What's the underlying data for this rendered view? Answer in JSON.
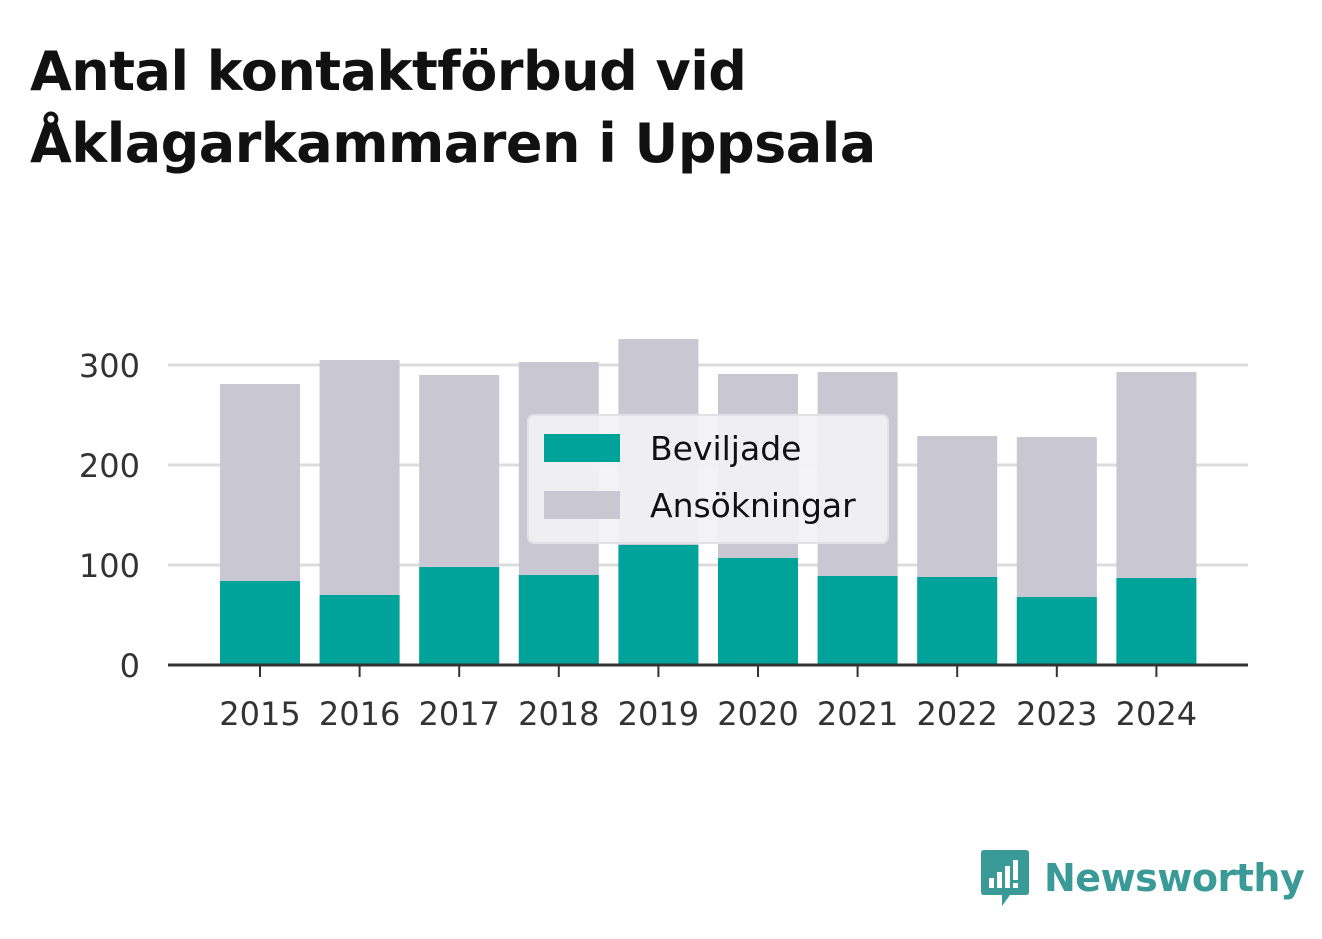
{
  "title_lines": [
    "Antal kontaktförbud vid",
    "Åklagarkammaren i Uppsala"
  ],
  "colors": {
    "beviljade": "#00a39a",
    "ansokningar": "#c8c7d2",
    "grid": "#dcdcdc",
    "axis": "#333333",
    "text": "#333333",
    "brand": "#3a9a97"
  },
  "chart_data": {
    "type": "bar",
    "stacking": "overlay",
    "title": "Antal kontaktförbud vid Åklagarkammaren i Uppsala",
    "categories": [
      "2015",
      "2016",
      "2017",
      "2018",
      "2019",
      "2020",
      "2021",
      "2022",
      "2023",
      "2024"
    ],
    "series": [
      {
        "name": "Ansökningar",
        "values": [
          281,
          305,
          290,
          303,
          326,
          291,
          293,
          229,
          228,
          293
        ]
      },
      {
        "name": "Beviljade",
        "values": [
          84,
          70,
          98,
          90,
          120,
          107,
          89,
          88,
          68,
          87
        ]
      }
    ],
    "legend": [
      "Beviljade",
      "Ansökningar"
    ],
    "legend_position": "center",
    "yticks": [
      0,
      100,
      200,
      300
    ],
    "ylim": [
      0,
      330
    ],
    "xlabel": "",
    "ylabel": "",
    "grid": true
  },
  "brand": {
    "name": "Newsworthy",
    "icon": "newsworthy-logo-icon"
  }
}
